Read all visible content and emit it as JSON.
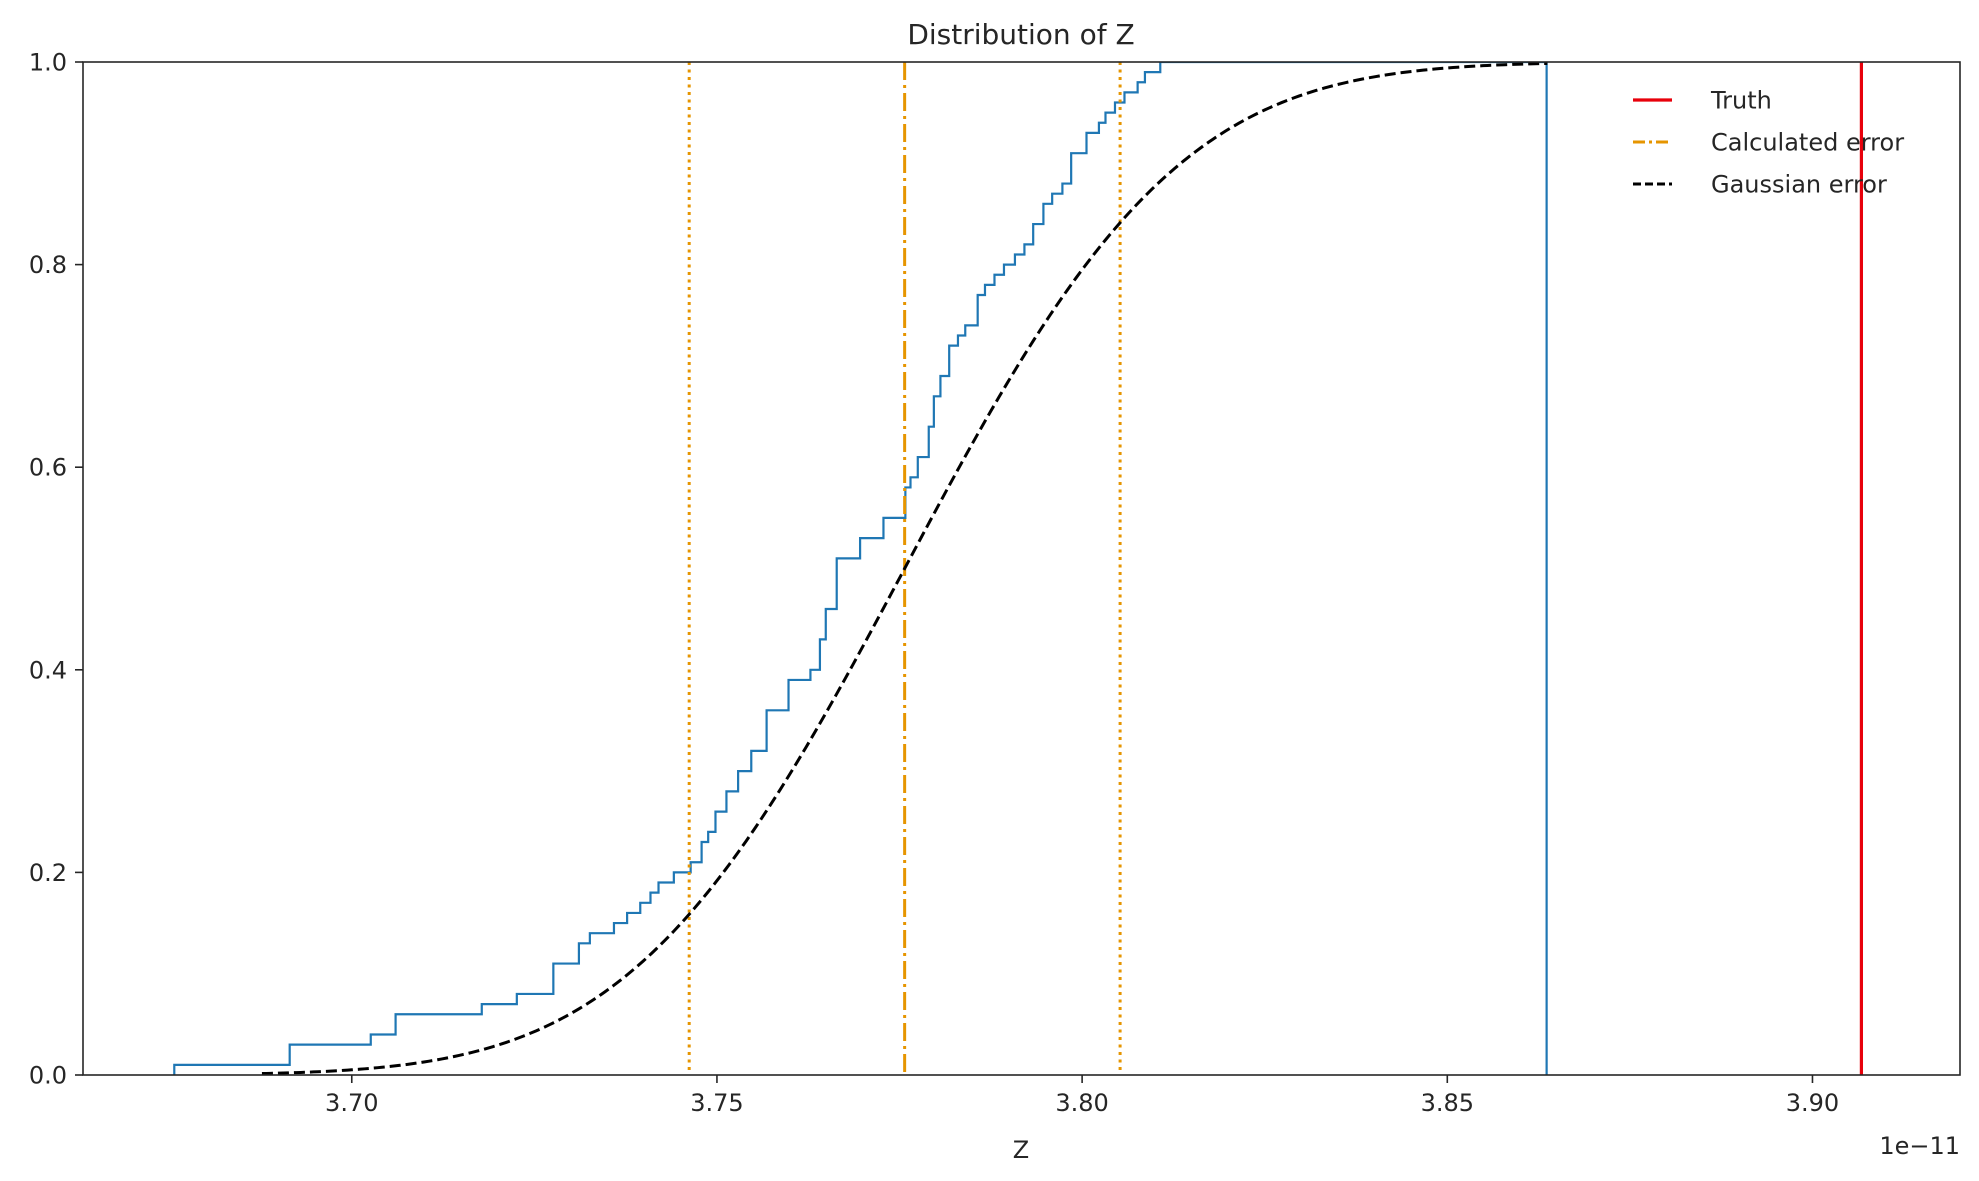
{
  "chart_data": {
    "type": "line",
    "title": "Distribution of Z",
    "xlabel": "Z",
    "ylabel": "",
    "x_offset_label": "1e−11",
    "xlim": [
      3.6632,
      3.9202
    ],
    "ylim": [
      0.0,
      1.0
    ],
    "xticks": [
      3.7,
      3.75,
      3.8,
      3.85,
      3.9
    ],
    "xtick_labels": [
      "3.70",
      "3.75",
      "3.80",
      "3.85",
      "3.90"
    ],
    "yticks": [
      0.0,
      0.2,
      0.4,
      0.6,
      0.8,
      1.0
    ],
    "ytick_labels": [
      "0.0",
      "0.2",
      "0.4",
      "0.6",
      "0.8",
      "1.0"
    ],
    "grid": false,
    "legend_position": "top-right",
    "legend": [
      "Truth",
      "Calculated error",
      "Gaussian error"
    ],
    "colors": {
      "ecdf": "#1f77b4",
      "truth": "#e8000b",
      "calculated": "#e69500",
      "gaussian": "#000000",
      "axes": "#262626"
    },
    "series": [
      {
        "style": "step",
        "x": [
          3.6757,
          3.6915,
          3.7026,
          3.706,
          3.7178,
          3.7226,
          3.7276,
          3.7311,
          3.7326,
          3.7359,
          3.7377,
          3.7395,
          3.7409,
          3.742,
          3.7441,
          3.7464,
          3.7479,
          3.7488,
          3.7498,
          3.7513,
          3.7529,
          3.7547,
          3.7568,
          3.7598,
          3.7628,
          3.7641,
          3.7649,
          3.7664,
          3.7696,
          3.7728,
          3.7758,
          3.7765,
          3.7775,
          3.779,
          3.7797,
          3.7806,
          3.7818,
          3.783,
          3.784,
          3.7857,
          3.7867,
          3.788,
          3.7893,
          3.7908,
          3.7921,
          3.7933,
          3.7947,
          3.7959,
          3.7973,
          3.7985,
          3.8006,
          3.8023,
          3.8032,
          3.8045,
          3.8058,
          3.8076,
          3.8086,
          3.8107,
          3.8123,
          3.8154,
          3.8179,
          3.8188,
          3.8206,
          3.8223,
          3.8283,
          3.8314,
          3.8366,
          3.8424,
          3.8528,
          3.8553,
          3.861,
          3.8636
        ],
        "y": [
          0.01,
          0.03,
          0.04,
          0.06,
          0.07,
          0.08,
          0.11,
          0.13,
          0.14,
          0.15,
          0.16,
          0.17,
          0.18,
          0.19,
          0.2,
          0.21,
          0.23,
          0.24,
          0.26,
          0.28,
          0.3,
          0.32,
          0.36,
          0.39,
          0.4,
          0.43,
          0.46,
          0.51,
          0.53,
          0.55,
          0.58,
          0.59,
          0.61,
          0.64,
          0.67,
          0.69,
          0.72,
          0.73,
          0.74,
          0.77,
          0.78,
          0.79,
          0.8,
          0.81,
          0.82,
          0.84,
          0.86,
          0.87,
          0.88,
          0.91,
          0.93,
          0.94,
          0.95,
          0.96,
          0.97,
          0.98,
          0.99,
          1.0,
          1.0,
          1.0,
          1.0,
          1.0,
          1.0,
          1.0,
          1.0,
          1.0,
          1.0,
          1.0,
          1.0,
          1.0,
          1.0,
          1.0
        ]
      },
      {
        "name": "Gaussian error",
        "style": "dashed",
        "mean": 3.7757,
        "sigma": 0.0295,
        "x_range": [
          3.6877,
          3.8637
        ]
      }
    ],
    "vlines": [
      {
        "name": "Truth",
        "x": 3.9067,
        "style": "solid"
      },
      {
        "name": "Calculated error",
        "x": 3.7757,
        "style": "dashdot"
      },
      {
        "x": 3.7462,
        "style": "dotted"
      },
      {
        "x": 3.8052,
        "style": "dotted"
      },
      {
        "x": 3.8636,
        "style": "ecdf-end"
      }
    ]
  }
}
